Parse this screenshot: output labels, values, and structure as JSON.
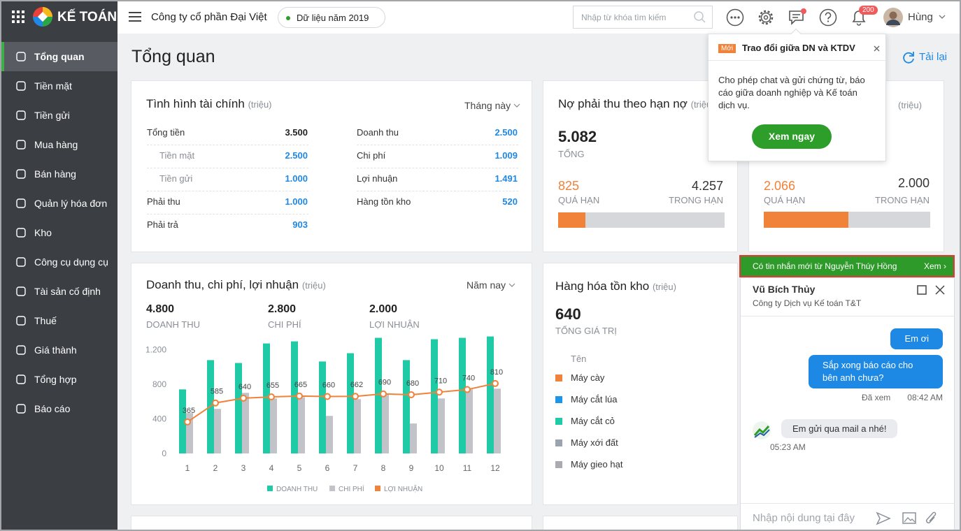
{
  "brand": "KẾ TOÁN",
  "sidebar": {
    "items": [
      "Tổng quan",
      "Tiền mặt",
      "Tiền gửi",
      "Mua hàng",
      "Bán hàng",
      "Quản lý hóa đơn",
      "Kho",
      "Công cụ dụng cụ",
      "Tài sản cố định",
      "Thuế",
      "Giá thành",
      "Tổng hợp",
      "Báo cáo"
    ],
    "active": 0
  },
  "header": {
    "company": "Công ty cổ phần Đại Việt",
    "year": "Dữ liệu năm 2019",
    "search_placeholder": "Nhập từ khóa tìm kiếm",
    "notification_count": "200",
    "user": "Hùng"
  },
  "page": {
    "title": "Tổng quan",
    "reload": "Tải lại"
  },
  "popup": {
    "badge": "Mới",
    "title": "Trao đổi giữa DN và KTDV",
    "body": "Cho phép chat và gửi chứng từ, báo cáo giữa doanh nghiệp và Kế toán dịch vụ.",
    "button": "Xem ngay"
  },
  "finance": {
    "title": "Tình hình tài chính",
    "unit": "(triệu)",
    "period": "Tháng này",
    "left": [
      {
        "label": "Tổng tiền",
        "value": "3.500",
        "children": [
          {
            "label": "Tiền mặt",
            "value": "2.500"
          },
          {
            "label": "Tiền gửi",
            "value": "1.000"
          }
        ]
      },
      {
        "label": "Phải thu",
        "value": "1.000"
      },
      {
        "label": "Phải trả",
        "value": "903"
      }
    ],
    "right": [
      {
        "label": "Doanh thu",
        "value": "2.500"
      },
      {
        "label": "Chi phí",
        "value": "1.009"
      },
      {
        "label": "Lợi nhuận",
        "value": "1.491"
      },
      {
        "label": "Hàng tồn kho",
        "value": "520"
      }
    ]
  },
  "receivables": {
    "title": "Nợ phải thu theo hạn nợ",
    "unit": "(triệu)",
    "total": "5.082",
    "total_label": "TỔNG",
    "overdue": "825",
    "overdue_label": "QUÁ HẠN",
    "in_term": "4.257",
    "in_term_label": "TRONG HẠN"
  },
  "payables": {
    "unit": "(triệu)",
    "overdue": "2.066",
    "overdue_label": "QUÁ HẠN",
    "in_term": "2.000",
    "in_term_label": "TRONG HẠN"
  },
  "revenue": {
    "title": "Doanh thu, chi phí, lợi nhuận",
    "unit": "(triệu)",
    "period": "Năm nay",
    "summary": [
      {
        "value": "4.800",
        "label": "DOANH THU"
      },
      {
        "value": "2.800",
        "label": "CHI PHÍ"
      },
      {
        "value": "2.000",
        "label": "LỢI NHUẬN"
      }
    ],
    "chart_data": {
      "type": "bar-line",
      "categories": [
        "1",
        "2",
        "3",
        "4",
        "5",
        "6",
        "7",
        "8",
        "9",
        "10",
        "11",
        "12"
      ],
      "series": [
        {
          "name": "DOANH THU",
          "type": "bar",
          "color": "#1fcaa7",
          "values": [
            742,
            1081,
            1048,
            1274,
            1298,
            1065,
            1161,
            1339,
            1081,
            1323,
            1339,
            1355
          ]
        },
        {
          "name": "CHI PHÍ",
          "type": "bar",
          "color": "#c2c3c8",
          "values": [
            468,
            516,
            702,
            637,
            653,
            435,
            629,
            694,
            347,
            637,
            742,
            750
          ]
        },
        {
          "name": "LỢI NHUẬN",
          "type": "line",
          "color": "#f0823a",
          "values": [
            365,
            585,
            640,
            655,
            665,
            660,
            662,
            690,
            680,
            710,
            740,
            810
          ]
        }
      ],
      "ylim": [
        0,
        1400
      ],
      "yticks": [
        0,
        400,
        800,
        {
          "value": 1200,
          "label": "1.200"
        }
      ],
      "grid": false
    }
  },
  "inventory": {
    "title": "Hàng hóa tồn kho",
    "unit": "(triệu)",
    "total": "640",
    "total_label": "TỔNG GIÁ TRỊ",
    "column": "Tên",
    "items": [
      {
        "name": "Máy cày",
        "color": "#f0823a"
      },
      {
        "name": "Máy cắt lúa",
        "color": "#1e96e8"
      },
      {
        "name": "Máy cắt cỏ",
        "color": "#1fcaa7"
      },
      {
        "name": "Máy xới đất",
        "color": "#9aa3ae"
      },
      {
        "name": "Máy gieo hạt",
        "color": "#a9abb0"
      }
    ]
  },
  "chat": {
    "banner": "Có tin nhắn mới từ Nguyễn Thúy Hồng",
    "banner_action": "Xem ›",
    "contact": "Vũ Bích Thủy",
    "company": "Công ty Dịch vụ Kế toán T&T",
    "sent": [
      {
        "text": "Em ơi"
      },
      {
        "text": "Sắp xong báo cáo cho bên anh chưa?",
        "status": "Đã xem",
        "time": "08:42 AM"
      }
    ],
    "received": [
      {
        "text": "Em gửi qua mail a nhé!",
        "time": "05:23 AM"
      }
    ],
    "input_placeholder": "Nhập nội dung tại đây"
  }
}
